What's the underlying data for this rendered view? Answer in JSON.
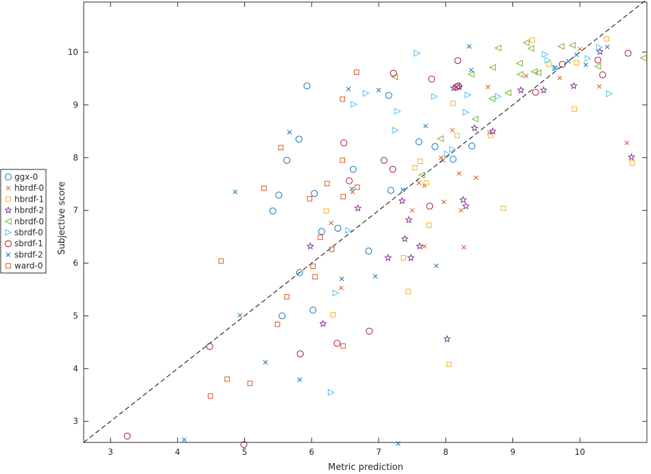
{
  "chart_data": {
    "type": "scatter",
    "title": "",
    "xlabel": "Metric prediction",
    "ylabel": "Subjective score",
    "xlim": [
      2.6,
      11.0
    ],
    "ylim": [
      2.6,
      10.95
    ],
    "x_ticks": [
      3,
      4,
      5,
      6,
      7,
      8,
      9,
      10
    ],
    "y_ticks": [
      3,
      4,
      5,
      6,
      7,
      8,
      9,
      10
    ],
    "x_tick_labels": [
      "3",
      "4",
      "5",
      "6",
      "7",
      "8",
      "9",
      "10"
    ],
    "y_tick_labels": [
      "3",
      "4",
      "5",
      "6",
      "7",
      "8",
      "9",
      "10"
    ],
    "grid": false,
    "legend_position": "outside-left",
    "reference_line": {
      "style": "dashed",
      "color": "#000000",
      "x": [
        2.6,
        11.0
      ],
      "y": [
        2.6,
        11.0
      ]
    },
    "series": [
      {
        "name": "ggx-0",
        "marker": "circle",
        "color": "#0072bd",
        "points": [
          [
            5.93,
            9.36
          ],
          [
            7.15,
            9.18
          ],
          [
            5.81,
            8.35
          ],
          [
            5.63,
            7.95
          ],
          [
            7.6,
            8.3
          ],
          [
            7.84,
            8.21
          ],
          [
            8.39,
            8.22
          ],
          [
            8.11,
            7.97
          ],
          [
            6.62,
            7.78
          ],
          [
            6.04,
            7.32
          ],
          [
            5.51,
            7.29
          ],
          [
            7.18,
            7.38
          ],
          [
            5.42,
            6.99
          ],
          [
            6.15,
            6.6
          ],
          [
            6.39,
            6.66
          ],
          [
            6.85,
            6.23
          ],
          [
            5.82,
            5.82
          ],
          [
            6.02,
            5.11
          ],
          [
            5.56,
            5.0
          ]
        ]
      },
      {
        "name": "hbrdf-0",
        "marker": "x",
        "color": "#d95319",
        "points": [
          [
            10.0,
            10.06
          ],
          [
            9.7,
            9.51
          ],
          [
            9.2,
            9.55
          ],
          [
            10.29,
            9.35
          ],
          [
            8.63,
            9.34
          ],
          [
            8.1,
            8.52
          ],
          [
            8.65,
            8.47
          ],
          [
            7.93,
            8.0
          ],
          [
            7.96,
            7.95
          ],
          [
            10.7,
            8.28
          ],
          [
            8.2,
            7.7
          ],
          [
            8.45,
            7.62
          ],
          [
            7.6,
            7.52
          ],
          [
            7.68,
            7.47
          ],
          [
            6.61,
            7.35
          ],
          [
            7.97,
            7.16
          ],
          [
            8.23,
            7.0
          ],
          [
            7.5,
            7.0
          ],
          [
            6.29,
            6.76
          ],
          [
            7.68,
            6.32
          ],
          [
            8.27,
            6.3
          ],
          [
            6.44,
            5.53
          ]
        ]
      },
      {
        "name": "hbrdf-1",
        "marker": "square",
        "color": "#edb120",
        "points": [
          [
            10.4,
            10.25
          ],
          [
            9.29,
            10.23
          ],
          [
            9.54,
            9.77
          ],
          [
            9.95,
            9.8
          ],
          [
            8.11,
            9.03
          ],
          [
            8.17,
            8.42
          ],
          [
            8.67,
            8.42
          ],
          [
            7.54,
            7.81
          ],
          [
            7.62,
            7.93
          ],
          [
            7.71,
            7.52
          ],
          [
            10.78,
            7.9
          ],
          [
            8.86,
            7.04
          ],
          [
            6.22,
            6.99
          ],
          [
            7.75,
            6.72
          ],
          [
            7.37,
            6.1
          ],
          [
            7.44,
            5.46
          ],
          [
            6.32,
            5.02
          ],
          [
            9.92,
            8.92
          ],
          [
            8.05,
            4.08
          ]
        ]
      },
      {
        "name": "hbrdf-2",
        "marker": "star",
        "color": "#7e2f8e",
        "points": [
          [
            8.12,
            9.32
          ],
          [
            8.2,
            9.34
          ],
          [
            8.43,
            8.56
          ],
          [
            8.7,
            8.5
          ],
          [
            9.12,
            9.28
          ],
          [
            9.46,
            9.28
          ],
          [
            9.91,
            9.36
          ],
          [
            10.3,
            10.01
          ],
          [
            10.77,
            8.01
          ],
          [
            6.69,
            7.04
          ],
          [
            7.35,
            7.18
          ],
          [
            8.26,
            7.2
          ],
          [
            8.3,
            7.08
          ],
          [
            7.45,
            6.82
          ],
          [
            5.98,
            6.32
          ],
          [
            7.39,
            6.46
          ],
          [
            7.61,
            6.32
          ],
          [
            7.14,
            6.1
          ],
          [
            7.48,
            6.1
          ],
          [
            6.17,
            4.85
          ],
          [
            8.02,
            4.56
          ]
        ]
      },
      {
        "name": "nbrdf-0",
        "marker": "triangle-left",
        "color": "#77ac30",
        "points": [
          [
            9.2,
            10.18
          ],
          [
            9.27,
            10.07
          ],
          [
            9.72,
            10.11
          ],
          [
            9.89,
            10.13
          ],
          [
            10.95,
            9.89
          ],
          [
            8.78,
            10.08
          ],
          [
            8.7,
            9.71
          ],
          [
            9.1,
            9.79
          ],
          [
            9.32,
            9.63
          ],
          [
            9.38,
            9.61
          ],
          [
            9.11,
            9.58
          ],
          [
            10.27,
            9.73
          ],
          [
            8.38,
            9.58
          ],
          [
            7.24,
            9.53
          ],
          [
            8.44,
            8.73
          ],
          [
            8.69,
            9.12
          ],
          [
            8.93,
            9.23
          ],
          [
            7.92,
            8.36
          ],
          [
            7.64,
            7.67
          ]
        ]
      },
      {
        "name": "sbrdf-0",
        "marker": "triangle-right",
        "color": "#4dbeee",
        "points": [
          [
            7.57,
            9.98
          ],
          [
            9.48,
            9.96
          ],
          [
            9.52,
            9.85
          ],
          [
            10.12,
            9.88
          ],
          [
            10.29,
            10.09
          ],
          [
            9.64,
            9.7
          ],
          [
            6.81,
            9.22
          ],
          [
            6.63,
            9.01
          ],
          [
            7.28,
            8.88
          ],
          [
            7.83,
            9.16
          ],
          [
            8.33,
            9.19
          ],
          [
            10.44,
            9.21
          ],
          [
            8.3,
            8.86
          ],
          [
            8.78,
            9.16
          ],
          [
            7.25,
            8.52
          ],
          [
            8.1,
            8.16
          ],
          [
            8.02,
            8.07
          ],
          [
            6.55,
            6.62
          ],
          [
            6.36,
            5.43
          ],
          [
            6.29,
            3.55
          ]
        ]
      },
      {
        "name": "sbrdf-1",
        "marker": "circle",
        "color": "#a2142f",
        "points": [
          [
            10.72,
            9.98
          ],
          [
            10.27,
            9.85
          ],
          [
            9.74,
            9.77
          ],
          [
            10.34,
            9.57
          ],
          [
            9.34,
            9.24
          ],
          [
            7.22,
            9.6
          ],
          [
            7.79,
            9.49
          ],
          [
            8.18,
            9.84
          ],
          [
            8.16,
            9.34
          ],
          [
            8.19,
            9.36
          ],
          [
            6.48,
            8.28
          ],
          [
            7.08,
            7.95
          ],
          [
            7.21,
            7.78
          ],
          [
            6.56,
            7.56
          ],
          [
            7.76,
            7.08
          ],
          [
            5.83,
            4.28
          ],
          [
            6.38,
            4.48
          ],
          [
            6.86,
            4.71
          ],
          [
            4.48,
            4.42
          ],
          [
            4.99,
            2.56
          ],
          [
            3.25,
            2.72
          ]
        ]
      },
      {
        "name": "sbrdf-2",
        "marker": "x",
        "color": "#0072bd",
        "points": [
          [
            8.35,
            10.11
          ],
          [
            10.41,
            10.1
          ],
          [
            9.95,
            9.95
          ],
          [
            10.09,
            9.76
          ],
          [
            9.63,
            9.7
          ],
          [
            9.83,
            9.83
          ],
          [
            8.38,
            9.66
          ],
          [
            7.0,
            9.28
          ],
          [
            6.55,
            9.3
          ],
          [
            5.67,
            8.48
          ],
          [
            7.7,
            8.6
          ],
          [
            4.86,
            7.35
          ],
          [
            7.36,
            7.39
          ],
          [
            6.6,
            7.41
          ],
          [
            7.86,
            5.95
          ],
          [
            6.95,
            5.75
          ],
          [
            6.45,
            5.7
          ],
          [
            4.93,
            5.01
          ],
          [
            5.31,
            4.12
          ],
          [
            5.82,
            3.79
          ],
          [
            4.1,
            2.65
          ],
          [
            7.29,
            2.58
          ]
        ]
      },
      {
        "name": "ward-0",
        "marker": "square",
        "color": "#d95319",
        "points": [
          [
            6.67,
            9.62
          ],
          [
            6.46,
            9.11
          ],
          [
            5.54,
            8.19
          ],
          [
            6.46,
            7.95
          ],
          [
            5.29,
            7.42
          ],
          [
            6.23,
            7.51
          ],
          [
            6.68,
            7.44
          ],
          [
            5.97,
            7.22
          ],
          [
            6.47,
            7.26
          ],
          [
            6.13,
            6.49
          ],
          [
            6.02,
            5.94
          ],
          [
            6.3,
            6.26
          ],
          [
            4.65,
            6.04
          ],
          [
            6.05,
            5.74
          ],
          [
            5.63,
            5.36
          ],
          [
            5.49,
            4.84
          ],
          [
            6.47,
            4.43
          ],
          [
            4.74,
            3.8
          ],
          [
            5.08,
            3.72
          ],
          [
            4.49,
            3.48
          ]
        ]
      }
    ]
  }
}
